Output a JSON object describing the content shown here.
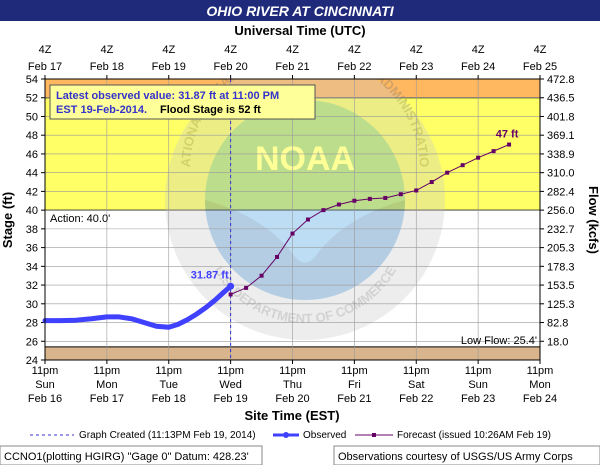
{
  "chart_data": {
    "type": "line",
    "title": "OHIO RIVER AT CINCINNATI",
    "top_axis_label": "Universal Time (UTC)",
    "top_ticks": [
      {
        "hour": "4Z",
        "date": "Feb 17"
      },
      {
        "hour": "4Z",
        "date": "Feb 18"
      },
      {
        "hour": "4Z",
        "date": "Feb 19"
      },
      {
        "hour": "4Z",
        "date": "Feb 20"
      },
      {
        "hour": "4Z",
        "date": "Feb 21"
      },
      {
        "hour": "4Z",
        "date": "Feb 22"
      },
      {
        "hour": "4Z",
        "date": "Feb 23"
      },
      {
        "hour": "4Z",
        "date": "Feb 24"
      },
      {
        "hour": "4Z",
        "date": "Feb 25"
      }
    ],
    "xlabel": "Site Time (EST)",
    "bottom_ticks": [
      {
        "time": "11pm",
        "day": "Sun",
        "date": "Feb 16"
      },
      {
        "time": "11pm",
        "day": "Mon",
        "date": "Feb 17"
      },
      {
        "time": "11pm",
        "day": "Tue",
        "date": "Feb 18"
      },
      {
        "time": "11pm",
        "day": "Wed",
        "date": "Feb 19"
      },
      {
        "time": "11pm",
        "day": "Thu",
        "date": "Feb 20"
      },
      {
        "time": "11pm",
        "day": "Fri",
        "date": "Feb 21"
      },
      {
        "time": "11pm",
        "day": "Sat",
        "date": "Feb 22"
      },
      {
        "time": "11pm",
        "day": "Sun",
        "date": "Feb 23"
      },
      {
        "time": "11pm",
        "day": "Mon",
        "date": "Feb 24"
      }
    ],
    "ylabel": "Stage (ft)",
    "ylim": [
      24,
      54
    ],
    "yticks": [
      24,
      26,
      28,
      30,
      32,
      34,
      36,
      38,
      40,
      42,
      44,
      46,
      48,
      50,
      52,
      54
    ],
    "y2label": "Flow (kcfs)",
    "y2ticks": [
      {
        "stage": 26,
        "label": "18.0"
      },
      {
        "stage": 28,
        "label": "82.8"
      },
      {
        "stage": 30,
        "label": "125.3"
      },
      {
        "stage": 32,
        "label": "153.5"
      },
      {
        "stage": 34,
        "label": "178.3"
      },
      {
        "stage": 36,
        "label": "205.3"
      },
      {
        "stage": 38,
        "label": "232.7"
      },
      {
        "stage": 40,
        "label": "256.0"
      },
      {
        "stage": 42,
        "label": "282.4"
      },
      {
        "stage": 44,
        "label": "310.0"
      },
      {
        "stage": 46,
        "label": "338.9"
      },
      {
        "stage": 48,
        "label": "369.1"
      },
      {
        "stage": 50,
        "label": "401.8"
      },
      {
        "stage": 52,
        "label": "436.5"
      },
      {
        "stage": 54,
        "label": "472.8"
      }
    ],
    "zones": {
      "major_flood_start": 52,
      "action_stage": 40.0,
      "low_flow": 25.4,
      "colors": {
        "flood": "#ffff66",
        "major": "#ffb860",
        "low": "#d8b58c",
        "normal": "#ffffff"
      }
    },
    "x_unit": "days since 11pm EST Feb 16, 2014",
    "observed": {
      "name": "Observed",
      "color": "#4040ff",
      "x": [
        0.0,
        0.25,
        0.5,
        0.75,
        1.0,
        1.2,
        1.4,
        1.6,
        1.8,
        2.0,
        2.15,
        2.3,
        2.45,
        2.6,
        2.75,
        2.9,
        3.0
      ],
      "y": [
        28.2,
        28.2,
        28.25,
        28.4,
        28.6,
        28.6,
        28.4,
        28.0,
        27.6,
        27.5,
        27.8,
        28.3,
        28.9,
        29.6,
        30.4,
        31.3,
        31.87
      ]
    },
    "forecast": {
      "name": "Forecast (issued 10:26AM Feb 19)",
      "color": "#660066",
      "x": [
        3.0,
        3.25,
        3.5,
        3.75,
        4.0,
        4.25,
        4.5,
        4.75,
        5.0,
        5.25,
        5.5,
        5.75,
        6.0,
        6.25,
        6.5,
        6.75,
        7.0,
        7.25,
        7.5
      ],
      "y": [
        31.0,
        31.7,
        33.0,
        35.0,
        37.5,
        39.0,
        40.0,
        40.6,
        41.0,
        41.2,
        41.3,
        41.7,
        42.1,
        43.0,
        44.0,
        44.8,
        45.6,
        46.3,
        47.0
      ]
    },
    "graph_created_x": 3.0,
    "observed_label": "31.87 ft",
    "forecast_label": "47 ft",
    "action_label": "Action: 40.0'",
    "low_flow_label": "Low Flow: 25.4'"
  },
  "infobox": {
    "line1": "Latest observed value: 31.87 ft at 11:00 PM",
    "line2_a": "EST 19-Feb-2014.",
    "line2_b": "Flood Stage is 52 ft"
  },
  "legend": {
    "graph_created": "Graph Created (11:13PM Feb 19, 2014)",
    "observed": "Observed",
    "forecast": "Forecast (issued 10:26AM Feb 19)"
  },
  "footer": {
    "left": "CCNO1(plotting HGIRG) \"Gage 0\" Datum: 428.23'",
    "right": "Observations courtesy of USGS/US Army Corps"
  },
  "watermark": {
    "center": "NOAA",
    "ring_top": "NATIONAL OCEANIC AND ATMOSPHERIC ADMINISTRATION",
    "ring_bottom": "U.S. DEPARTMENT OF COMMERCE"
  }
}
